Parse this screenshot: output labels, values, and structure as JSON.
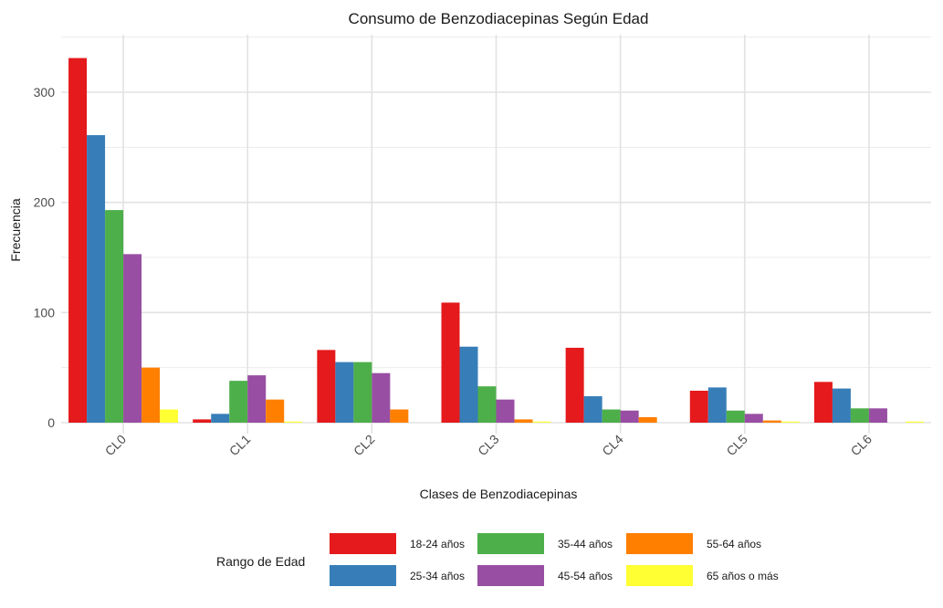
{
  "chart_data": {
    "type": "bar",
    "title": "Consumo de Benzodiacepinas Según Edad",
    "xlabel": "Clases de Benzodiacepinas",
    "ylabel": "Frecuencia",
    "categories": [
      "CL0",
      "CL1",
      "CL2",
      "CL3",
      "CL4",
      "CL5",
      "CL6"
    ],
    "yticks": [
      0,
      100,
      200,
      300
    ],
    "ylim": [
      0,
      340
    ],
    "grid": true,
    "legend": {
      "title": "Rango de Edad",
      "position": "bottom"
    },
    "series": [
      {
        "name": "18-24 años",
        "color": "#E41A1C",
        "values": [
          331,
          3,
          66,
          109,
          68,
          29,
          37
        ]
      },
      {
        "name": "25-34 años",
        "color": "#377EB8",
        "values": [
          261,
          8,
          55,
          69,
          24,
          32,
          31
        ]
      },
      {
        "name": "35-44 años",
        "color": "#4DAF4A",
        "values": [
          193,
          38,
          55,
          33,
          12,
          11,
          13
        ]
      },
      {
        "name": "45-54 años",
        "color": "#984EA3",
        "values": [
          153,
          43,
          45,
          21,
          11,
          8,
          13
        ]
      },
      {
        "name": "55-64 años",
        "color": "#FF7F00",
        "values": [
          50,
          21,
          12,
          3,
          5,
          2,
          0
        ]
      },
      {
        "name": "65 años o más",
        "color": "#FFFF33",
        "values": [
          12,
          1,
          0,
          1,
          0,
          1,
          1
        ]
      }
    ]
  }
}
